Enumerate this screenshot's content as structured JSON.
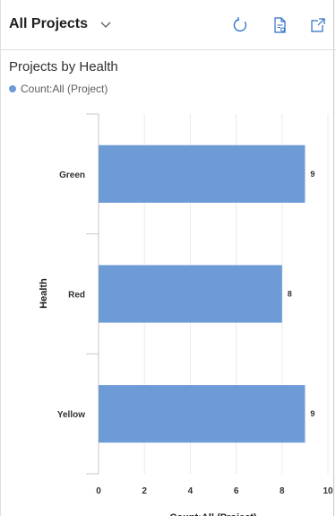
{
  "header": {
    "view_title": "All Projects",
    "icons": {
      "chevron": "chevron-down-icon",
      "refresh": "refresh-icon",
      "report": "report-icon",
      "expand": "expand-icon"
    }
  },
  "legend": {
    "label": "Count:All (Project)",
    "color": "#6c9bd6"
  },
  "chart_data": {
    "type": "bar",
    "orientation": "horizontal",
    "title": "Projects by Health",
    "categories": [
      "Green",
      "Red",
      "Yellow"
    ],
    "series": [
      {
        "name": "Count:All (Project)",
        "values": [
          9,
          8,
          9
        ],
        "color": "#6c9bd6"
      }
    ],
    "data_labels": [
      "9",
      "8",
      "9"
    ],
    "ylabel": "Health",
    "xlabel": "Count:All (Project)",
    "xlim": [
      0,
      10
    ],
    "xticks": [
      0,
      2,
      4,
      6,
      8,
      10
    ],
    "grid": true
  }
}
